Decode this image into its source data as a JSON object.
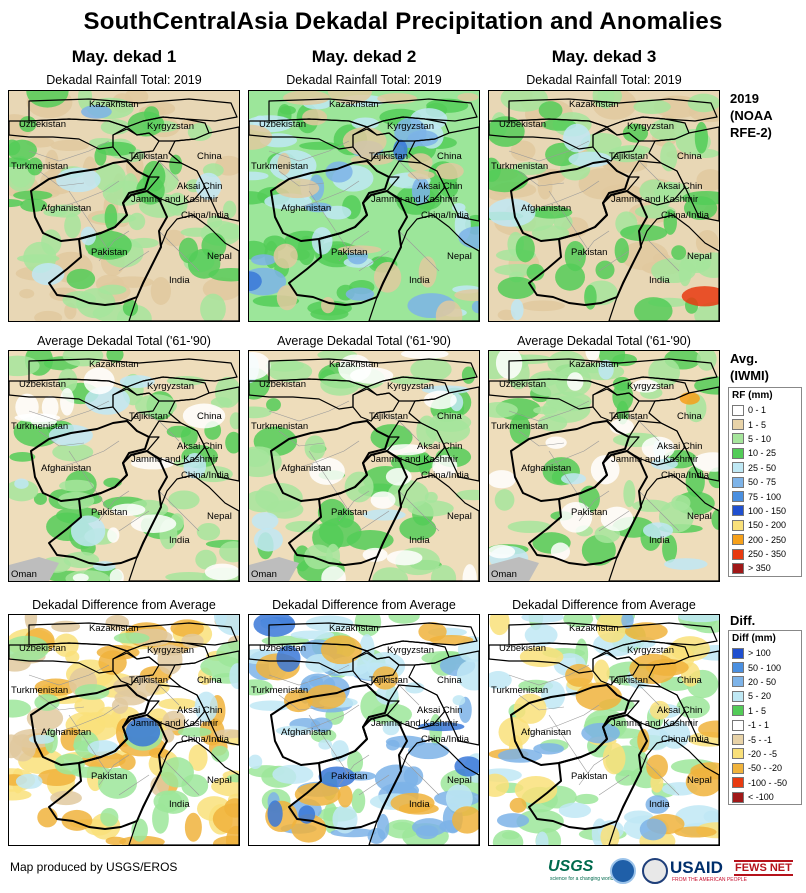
{
  "title": "SouthCentralAsia Dekadal Precipitation and Anomalies",
  "columns": [
    "May. dekad 1",
    "May. dekad 2",
    "May. dekad 3"
  ],
  "rows": [
    {
      "map_title": "Dekadal Rainfall Total: 2019",
      "side_label": "2019 (NOAA RFE-2)",
      "maps": [
        {
          "wash": "#e8d7b5",
          "blobs": [
            [
              "#e0c99f",
              0.55
            ],
            [
              "#a6e59c",
              0.6
            ],
            [
              "#53cc58",
              0.35
            ],
            [
              "#bfe8f4",
              0.05
            ],
            [
              "#7db3e8",
              0.02
            ]
          ]
        },
        {
          "wash": "#9ce69a",
          "blobs": [
            [
              "#53cc58",
              0.5
            ],
            [
              "#bfe8f4",
              0.3
            ],
            [
              "#7db3e8",
              0.2
            ],
            [
              "#e0c99f",
              0.3
            ],
            [
              "#3a78d8",
              0.03
            ]
          ]
        },
        {
          "wash": "#e8d7b5",
          "blobs": [
            [
              "#e0c99f",
              0.5
            ],
            [
              "#a6e59c",
              0.55
            ],
            [
              "#53cc58",
              0.35
            ],
            [
              "#bfe8f4",
              0.06
            ],
            [
              "#e83a10",
              0.01
            ]
          ]
        }
      ]
    },
    {
      "map_title": "Average Dekadal Total ('61-'90)",
      "side_label": "Avg. (IWMI)",
      "maps": [
        {
          "wash": "#eeddbb",
          "blobs": [
            [
              "#53cc58",
              0.4
            ],
            [
              "#a6e59c",
              0.4
            ],
            [
              "#bfe8f4",
              0.1
            ],
            [
              "#ffffff",
              0.2
            ]
          ]
        },
        {
          "wash": "#eeddbb",
          "blobs": [
            [
              "#53cc58",
              0.38
            ],
            [
              "#a6e59c",
              0.4
            ],
            [
              "#bfe8f4",
              0.08
            ],
            [
              "#ffffff",
              0.2
            ]
          ]
        },
        {
          "wash": "#eeddbb",
          "blobs": [
            [
              "#53cc58",
              0.4
            ],
            [
              "#a6e59c",
              0.4
            ],
            [
              "#bfe8f4",
              0.1
            ],
            [
              "#ffffff",
              0.2
            ],
            [
              "#f6a01a",
              0.02
            ]
          ]
        }
      ]
    },
    {
      "map_title": "Dekadal Difference from Average",
      "side_label": "Diff.",
      "maps": [
        {
          "wash": "#ffffff",
          "blobs": [
            [
              "#f9e07a",
              0.55
            ],
            [
              "#f0b33c",
              0.45
            ],
            [
              "#e0c99f",
              0.35
            ],
            [
              "#9ce69a",
              0.35
            ],
            [
              "#bfe8f4",
              0.1
            ],
            [
              "#3a78d8",
              0.02
            ]
          ]
        },
        {
          "wash": "#ffffff",
          "blobs": [
            [
              "#9ce69a",
              0.45
            ],
            [
              "#7db3e8",
              0.5
            ],
            [
              "#bfe8f4",
              0.4
            ],
            [
              "#f0b33c",
              0.2
            ],
            [
              "#3a78d8",
              0.1
            ]
          ]
        },
        {
          "wash": "#ffffff",
          "blobs": [
            [
              "#9ce69a",
              0.55
            ],
            [
              "#bfe8f4",
              0.35
            ],
            [
              "#f9e07a",
              0.3
            ],
            [
              "#f0b33c",
              0.2
            ],
            [
              "#7db3e8",
              0.1
            ]
          ]
        }
      ]
    }
  ],
  "labels": {
    "kazakhstan": "Kazakhstan",
    "uzbekistan": "Uzbekistan",
    "kyrgyzstan": "Kyrgyzstan",
    "turkmenistan": "Turkmenistan",
    "tajikistan": "Tajikistan",
    "china": "China",
    "aksai_chin": "Aksai Chin",
    "jammu_kashmir": "Jammu and Kashmir",
    "china_india": "China/India",
    "afghanistan": "Afghanistan",
    "pakistan": "Pakistan",
    "nepal": "Nepal",
    "india": "India",
    "oman": "Oman"
  },
  "legend_rf": {
    "title": "RF (mm)",
    "items": [
      {
        "label": "0 - 1",
        "color": "#ffffff"
      },
      {
        "label": "1 - 5",
        "color": "#e8d3a8"
      },
      {
        "label": "5 - 10",
        "color": "#a6e59c"
      },
      {
        "label": "10 - 25",
        "color": "#53cc58"
      },
      {
        "label": "25 - 50",
        "color": "#bfe8f4"
      },
      {
        "label": "50 - 75",
        "color": "#7db3e8"
      },
      {
        "label": "75 - 100",
        "color": "#4a8fe0"
      },
      {
        "label": "100 - 150",
        "color": "#1f4fcf"
      },
      {
        "label": "150 - 200",
        "color": "#f9e07a"
      },
      {
        "label": "200 - 250",
        "color": "#f6a01a"
      },
      {
        "label": "250 - 350",
        "color": "#e83a10"
      },
      {
        "label": "> 350",
        "color": "#a01818"
      }
    ]
  },
  "legend_diff": {
    "title": "Diff (mm)",
    "items": [
      {
        "label": "> 100",
        "color": "#1f4fcf"
      },
      {
        "label": "50 - 100",
        "color": "#4a8fe0"
      },
      {
        "label": "20 - 50",
        "color": "#7db3e8"
      },
      {
        "label": "5 - 20",
        "color": "#bfe8f4"
      },
      {
        "label": "1 - 5",
        "color": "#53cc58"
      },
      {
        "label": "-1 - 1",
        "color": "#ffffff"
      },
      {
        "label": "-5 - -1",
        "color": "#e8d3a8"
      },
      {
        "label": "-20 - -5",
        "color": "#f9e07a"
      },
      {
        "label": "-50 - -20",
        "color": "#f0b33c"
      },
      {
        "label": "-100 - -50",
        "color": "#e83a10"
      },
      {
        "label": "< -100",
        "color": "#a01818"
      }
    ]
  },
  "credit": "Map produced by USGS/EROS",
  "logos": {
    "usgs": "USGS",
    "usgs_tag": "science for a changing world",
    "usaid": "USAID",
    "usaid_tag": "FROM THE AMERICAN PEOPLE",
    "fews": "FEWS NET"
  }
}
